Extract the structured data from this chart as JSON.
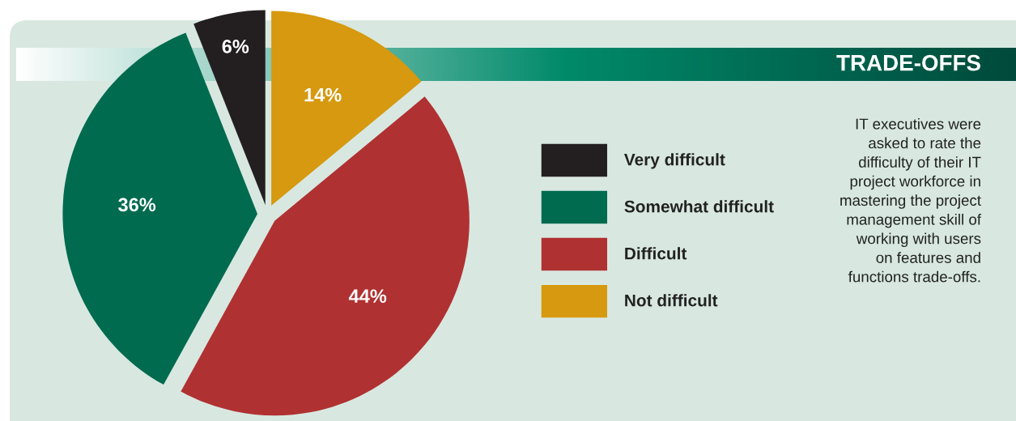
{
  "chart_data": {
    "type": "pie",
    "title": "TRADE-OFFS",
    "categories": [
      "Very difficult",
      "Somewhat difficult",
      "Difficult",
      "Not difficult"
    ],
    "values": [
      6,
      36,
      44,
      14
    ],
    "colors": [
      "#231f20",
      "#006b4f",
      "#b03131",
      "#d6990f"
    ],
    "value_labels": [
      "6%",
      "36%",
      "44%",
      "14%"
    ],
    "legend": "right",
    "annotations": [
      "IT executives were\nasked to rate the\ndifficulty of their IT\nproject workforce in\nmastering the project\nmanagement skill of\nworking with users\non features and\nfunctions trade-offs."
    ]
  }
}
